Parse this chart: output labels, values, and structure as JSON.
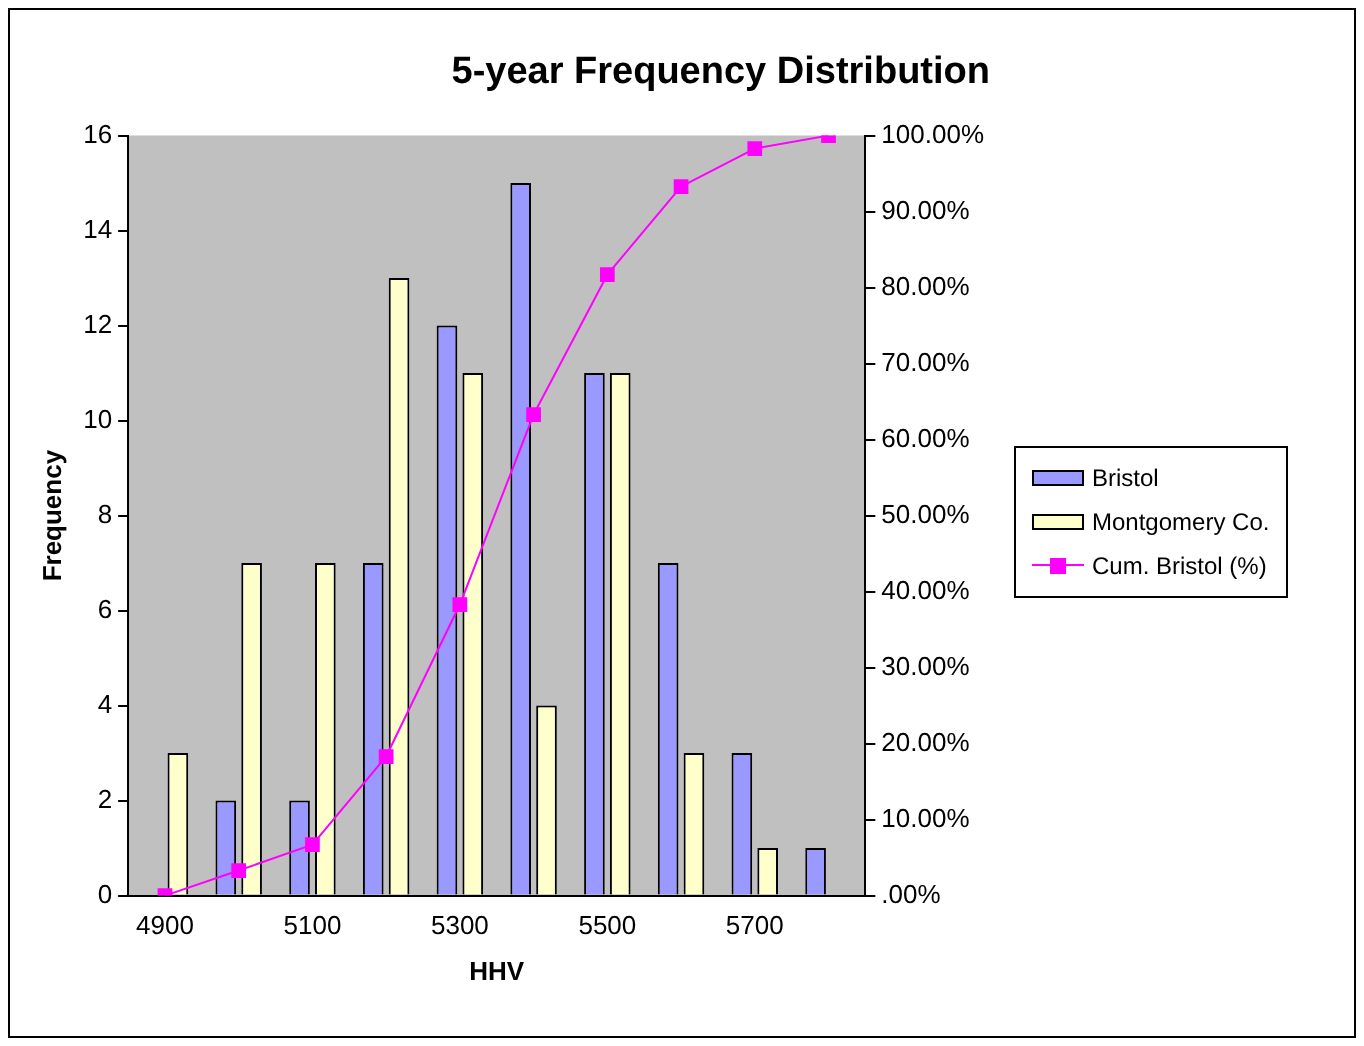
{
  "chart_data": {
    "type": "bar",
    "title": "5-year Frequency Distribution",
    "xlabel": "HHV",
    "ylabel": "Frequency",
    "categories": [
      "4900",
      null,
      "5100",
      null,
      "5300",
      null,
      "5500",
      null,
      "5700",
      null
    ],
    "series": [
      {
        "name": "Bristol",
        "color": "#9999ff",
        "values": [
          0,
          2,
          2,
          7,
          12,
          15,
          11,
          7,
          3,
          1
        ]
      },
      {
        "name": "Montgomery Co.",
        "color": "#ffffcc",
        "values": [
          3,
          7,
          7,
          13,
          11,
          4,
          11,
          3,
          1,
          0
        ]
      },
      {
        "name": "Cum. Bristol (%)",
        "type": "line",
        "axis": "y2",
        "color": "#ff00ff",
        "values": [
          0,
          3.3,
          6.7,
          18.3,
          38.3,
          63.3,
          81.7,
          93.3,
          98.3,
          100
        ]
      }
    ],
    "ylim": [
      0,
      16
    ],
    "yticks": [
      0,
      2,
      4,
      6,
      8,
      10,
      12,
      14,
      16
    ],
    "y2lim": [
      0,
      100
    ],
    "y2ticks": [
      {
        "value": 0,
        "label": ".00%"
      },
      {
        "value": 10,
        "label": "10.00%"
      },
      {
        "value": 20,
        "label": "20.00%"
      },
      {
        "value": 30,
        "label": "30.00%"
      },
      {
        "value": 40,
        "label": "40.00%"
      },
      {
        "value": 50,
        "label": "50.00%"
      },
      {
        "value": 60,
        "label": "60.00%"
      },
      {
        "value": 70,
        "label": "70.00%"
      },
      {
        "value": 80,
        "label": "80.00%"
      },
      {
        "value": 90,
        "label": "90.00%"
      },
      {
        "value": 100,
        "label": "100.00%"
      }
    ],
    "grid": false,
    "legend": "right",
    "marker": "square"
  }
}
